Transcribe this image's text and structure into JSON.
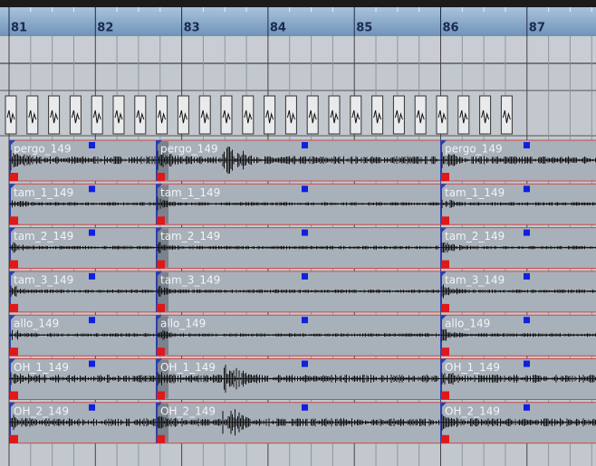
{
  "ruler": {
    "bars": [
      "81",
      "82",
      "83",
      "84",
      "85",
      "86",
      "87"
    ]
  },
  "tracks": [
    {
      "clips": [
        "pergo_149",
        "pergo_149",
        "pergo_149"
      ]
    },
    {
      "clips": [
        "tam_1_149",
        "tam_1_149",
        "tam_1_149"
      ]
    },
    {
      "clips": [
        "tam_2_149",
        "tam_2_149",
        "tam_2_149"
      ]
    },
    {
      "clips": [
        "tam_3_149",
        "tam_3_149",
        "tam_3_149"
      ]
    },
    {
      "clips": [
        "allo_149",
        "allo_149",
        "allo_149"
      ]
    },
    {
      "clips": [
        "OH_1_149",
        "OH_1_149",
        "OH_1_149"
      ]
    },
    {
      "clips": [
        "OH_2_149",
        "OH_2_149",
        "OH_2_149"
      ]
    }
  ]
}
